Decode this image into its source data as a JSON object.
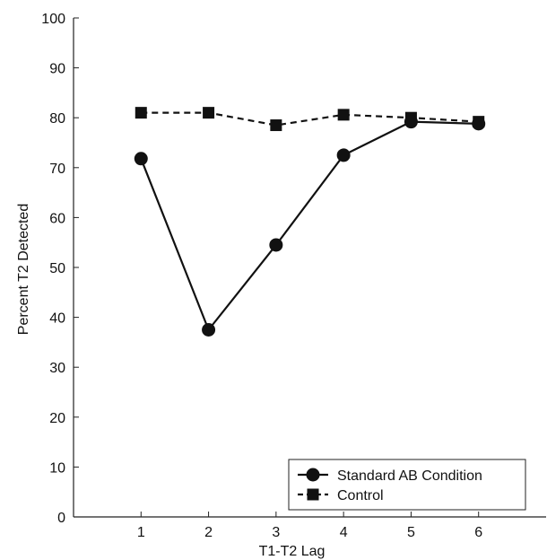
{
  "chart_data": {
    "type": "line",
    "title": "",
    "xlabel": "T1-T2 Lag",
    "ylabel": "Percent T2 Detected",
    "x": [
      1,
      2,
      3,
      4,
      5,
      6
    ],
    "x_tick_labels": [
      "1",
      "2",
      "3",
      "4",
      "5",
      "6"
    ],
    "xlim": [
      0,
      7
    ],
    "ylim": [
      0,
      100
    ],
    "y_ticks": [
      0,
      10,
      20,
      30,
      40,
      50,
      60,
      70,
      80,
      90,
      100
    ],
    "grid": false,
    "legend_position": "bottom-right",
    "series": [
      {
        "name": "Standard AB Condition",
        "marker": "circle",
        "line_style": "solid",
        "values": [
          71.8,
          37.5,
          54.5,
          72.5,
          79.2,
          78.8
        ]
      },
      {
        "name": "Control",
        "marker": "square",
        "line_style": "dashed",
        "values": [
          81.0,
          81.0,
          78.5,
          80.6,
          80.0,
          79.2
        ]
      }
    ],
    "colors": {
      "line": "#111111",
      "axis": "#222222",
      "background": "#ffffff"
    }
  }
}
